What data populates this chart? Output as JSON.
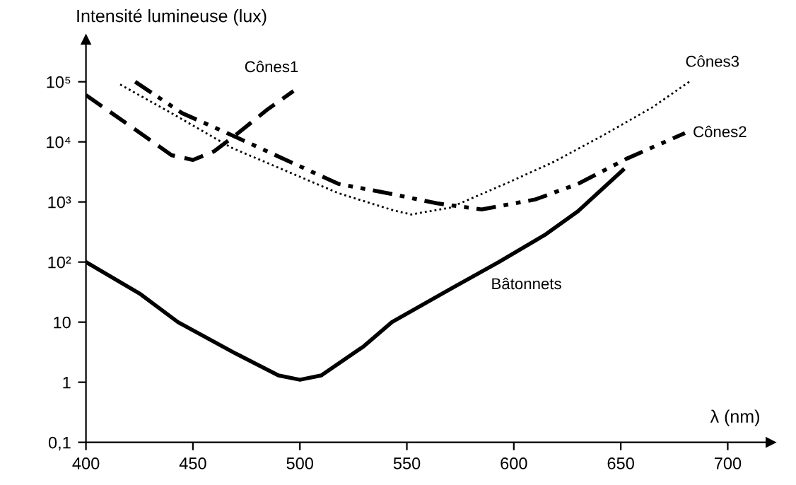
{
  "chart_data": {
    "type": "line",
    "xlabel": "λ (nm)",
    "ylabel": "Intensité lumineuse (lux)",
    "log": "y",
    "grid": false,
    "legend": false,
    "marker": "none",
    "xlim": [
      400,
      720
    ],
    "xticks": [
      400,
      450,
      500,
      550,
      600,
      650,
      700
    ],
    "ylim": [
      0.1,
      500000
    ],
    "yticks": [
      {
        "value": 0.1,
        "label": "0,1"
      },
      1,
      10,
      {
        "value": 100,
        "label": "10²"
      },
      {
        "value": 1000,
        "label": "10³"
      },
      {
        "value": 10000,
        "label": "10⁴"
      },
      {
        "value": 100000,
        "label": "10⁵"
      }
    ],
    "series": [
      {
        "name": "Bâtonnets",
        "color": "#000000",
        "line_style": "solid",
        "x": [
          400,
          425,
          443,
          470,
          490,
          500,
          510,
          530,
          543,
          570,
          593,
          615,
          630,
          651
        ],
        "values": [
          100,
          30,
          10,
          3,
          1.3,
          1.1,
          1.3,
          4,
          10,
          35,
          100,
          290,
          700,
          3400
        ]
      },
      {
        "name": "Cônes1",
        "color": "#000000",
        "line_style": "dashed",
        "x": [
          400,
          422,
          440,
          450,
          460,
          470,
          485,
          497
        ],
        "values": [
          60000,
          17000,
          6000,
          5000,
          7000,
          13000,
          35000,
          70000
        ]
      },
      {
        "name": "Cônes2",
        "color": "#000000",
        "line_style": "dashdot",
        "x": [
          423,
          445,
          468,
          518,
          541,
          564,
          585,
          610,
          630,
          653,
          680
        ],
        "values": [
          100000,
          30000,
          13000,
          2000,
          1400,
          950,
          750,
          1100,
          2000,
          5300,
          14000
        ]
      },
      {
        "name": "Cônes3",
        "color": "#000000",
        "line_style": "dotted",
        "x": [
          416,
          440,
          468,
          518,
          544,
          552,
          570,
          596,
          619,
          642,
          665,
          682
        ],
        "values": [
          90000,
          30000,
          8000,
          1400,
          720,
          620,
          800,
          2000,
          4700,
          13000,
          38000,
          100000
        ]
      }
    ]
  }
}
